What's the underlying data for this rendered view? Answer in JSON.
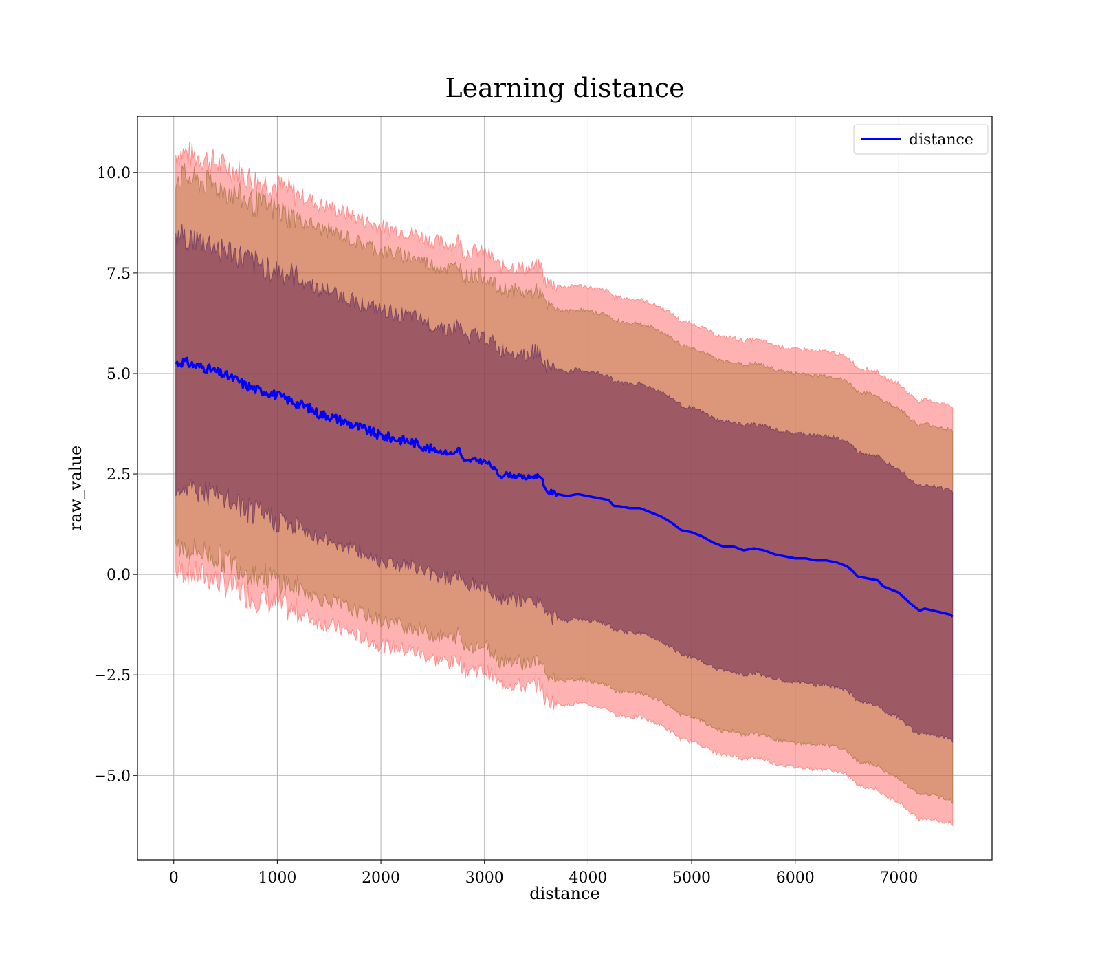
{
  "chart_data": {
    "type": "line",
    "title": "Learning distance",
    "xlabel": "distance",
    "ylabel": "raw_value",
    "xlim": [
      -350,
      7900
    ],
    "ylim": [
      -7.1,
      11.4
    ],
    "x_ticks": [
      0,
      1000,
      2000,
      3000,
      4000,
      5000,
      6000,
      7000
    ],
    "x_tick_labels": [
      "0",
      "1000",
      "2000",
      "3000",
      "4000",
      "5000",
      "6000",
      "7000"
    ],
    "y_ticks": [
      -5.0,
      -2.5,
      0.0,
      2.5,
      5.0,
      7.5,
      10.0
    ],
    "y_tick_labels": [
      "−5.0",
      "−2.5",
      "0.0",
      "2.5",
      "5.0",
      "7.5",
      "10.0"
    ],
    "grid": true,
    "legend": {
      "placement": "top-right",
      "entries": [
        {
          "name": "distance",
          "color": "#0000ff"
        }
      ]
    },
    "series": [
      {
        "name": "distance",
        "color": "#0000ff",
        "x": [
          20,
          100,
          200,
          300,
          400,
          500,
          600,
          700,
          800,
          900,
          1000,
          1100,
          1200,
          1300,
          1400,
          1500,
          1600,
          1700,
          1800,
          1900,
          2000,
          2100,
          2200,
          2300,
          2400,
          2500,
          2600,
          2700,
          2750,
          2800,
          2900,
          3000,
          3050,
          3100,
          3150,
          3200,
          3300,
          3400,
          3500,
          3550,
          3580,
          3620,
          3650,
          3700,
          3800,
          3900,
          4000,
          4100,
          4200,
          4250,
          4300,
          4400,
          4500,
          4600,
          4700,
          4800,
          4900,
          5000,
          5100,
          5200,
          5300,
          5400,
          5500,
          5600,
          5700,
          5800,
          5900,
          6000,
          6100,
          6200,
          6300,
          6400,
          6450,
          6500,
          6550,
          6600,
          6700,
          6800,
          6850,
          6900,
          7000,
          7100,
          7200,
          7250,
          7500,
          7520
        ],
        "y": [
          5.25,
          5.3,
          5.2,
          5.15,
          5.05,
          4.95,
          4.85,
          4.7,
          4.6,
          4.55,
          4.45,
          4.35,
          4.25,
          4.15,
          4.0,
          3.95,
          3.85,
          3.75,
          3.65,
          3.55,
          3.45,
          3.4,
          3.35,
          3.3,
          3.2,
          3.1,
          3.05,
          3.0,
          3.15,
          2.8,
          2.85,
          2.8,
          2.75,
          2.6,
          2.45,
          2.5,
          2.45,
          2.4,
          2.45,
          2.45,
          2.1,
          2.05,
          2.05,
          2.0,
          1.95,
          2.0,
          1.95,
          1.9,
          1.85,
          1.7,
          1.7,
          1.65,
          1.65,
          1.55,
          1.45,
          1.3,
          1.1,
          1.05,
          0.95,
          0.8,
          0.7,
          0.7,
          0.6,
          0.65,
          0.6,
          0.5,
          0.45,
          0.4,
          0.4,
          0.35,
          0.35,
          0.3,
          0.25,
          0.2,
          0.1,
          -0.05,
          -0.1,
          -0.15,
          -0.3,
          -0.35,
          -0.45,
          -0.7,
          -0.9,
          -0.85,
          -1.0,
          -1.05
        ]
      }
    ],
    "bands": [
      {
        "sigma": 3,
        "offset": 5.2,
        "fill": "#ff0000",
        "opacity": 0.3,
        "edge_color": "#ff6060"
      },
      {
        "sigma": 2,
        "offset": 4.6,
        "fill": "#c0804a",
        "opacity": 0.55,
        "edge_color": "#9a6a3a"
      },
      {
        "sigma": 1,
        "offset": 3.1,
        "fill": "#6a2a55",
        "opacity": 0.55,
        "edge_color": "#5a2a5a"
      }
    ]
  }
}
